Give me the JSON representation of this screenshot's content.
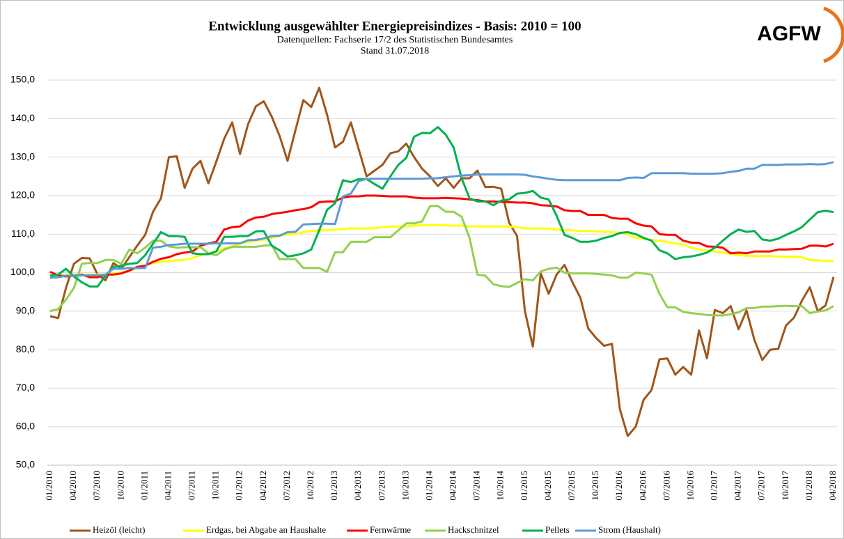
{
  "logo": "AGFW",
  "chart_data": {
    "type": "line",
    "title": "Entwicklung ausgewählter Energiepreisindizes - Basis: 2010 = 100",
    "subtitle": "Datenquellen:  Fachserie 17/2 des Statistischen Bundesamtes",
    "note": "Stand 31.07.2018",
    "categories": [
      "01/2010",
      null,
      null,
      "04/2010",
      null,
      null,
      "07/2010",
      null,
      null,
      "10/2010",
      null,
      null,
      "01/2011",
      null,
      null,
      "04/2011",
      null,
      null,
      "07/2011",
      null,
      null,
      "10/2011",
      null,
      null,
      "01/2012",
      null,
      null,
      "04/2012",
      null,
      null,
      "07/2012",
      null,
      null,
      "10/2012",
      null,
      null,
      "01/2013",
      null,
      null,
      "04/2013",
      null,
      null,
      "07/2013",
      null,
      null,
      "10/2013",
      null,
      null,
      "01/2014",
      null,
      null,
      "04/2014",
      null,
      null,
      "07/2014",
      null,
      null,
      "10/2014",
      null,
      null,
      "01/2015",
      null,
      null,
      "04/2015",
      null,
      null,
      "07/2015",
      null,
      null,
      "10/2015",
      null,
      null,
      "01/2016",
      null,
      null,
      "04/2016",
      null,
      null,
      "07/2016",
      null,
      null,
      "10/2016",
      null,
      null,
      "01/2017",
      null,
      null,
      "04/2017",
      null,
      null,
      "07/2017",
      null,
      null,
      "10/2017",
      null,
      null,
      "01/2018",
      null,
      null,
      "04/2018"
    ],
    "ylim": [
      50,
      150
    ],
    "yticks": [
      {
        "value": 50,
        "label": "50,0"
      },
      {
        "value": 60,
        "label": "60,0"
      },
      {
        "value": 70,
        "label": "70,0"
      },
      {
        "value": 80,
        "label": "80,0"
      },
      {
        "value": 90,
        "label": "90,0"
      },
      {
        "value": 100,
        "label": "100,0"
      },
      {
        "value": 110,
        "label": "110,0"
      },
      {
        "value": 120,
        "label": "120,0"
      },
      {
        "value": 130,
        "label": "130,0"
      },
      {
        "value": 140,
        "label": "140,0"
      },
      {
        "value": 150,
        "label": "150,0"
      }
    ],
    "grid": true,
    "legend": "bottom",
    "series": [
      {
        "name": "Heizöl (leicht)",
        "color": "#a0561a",
        "values": [
          88.7,
          88.2,
          96,
          102.3,
          103.8,
          103.7,
          99.5,
          98,
          102.5,
          101,
          104,
          107,
          109.8,
          115.8,
          119.3,
          130,
          130.2,
          122,
          127,
          129,
          123.2,
          128.8,
          134.8,
          139,
          130.8,
          138.5,
          143.2,
          144.5,
          140.5,
          135.5,
          129,
          137,
          144.8,
          143,
          148,
          141,
          132.5,
          134,
          139,
          132,
          125,
          126.5,
          128,
          131,
          131.5,
          133.5,
          130,
          127,
          125,
          122.5,
          124.5,
          122,
          124.5,
          124.5,
          126.5,
          122.2,
          122.3,
          121.8,
          113,
          109.5,
          90,
          80.8,
          99.8,
          94.5,
          99.5,
          102,
          97.5,
          93.5,
          85.5,
          83,
          81,
          81.5,
          64.5,
          57.6,
          60,
          67,
          69.5,
          77.5,
          77.7,
          73.5,
          75.5,
          73.5,
          85,
          77.8,
          90.3,
          89.5,
          91.3,
          85.3,
          90.2,
          82.5,
          77.3,
          80,
          80.2,
          86.3,
          88.3,
          92.7,
          96.2,
          90,
          91.5,
          98.9
        ]
      },
      {
        "name": "Erdgas, bei Abgabe an Haushalte",
        "color": "#ffff00",
        "values": [
          99.3,
          99.3,
          99.4,
          99.5,
          99.5,
          99.5,
          99.5,
          99.5,
          99.8,
          100,
          100.5,
          101.2,
          101.8,
          102.5,
          102.8,
          103,
          103.2,
          103.3,
          103.8,
          104.5,
          105,
          105.5,
          106.3,
          106.8,
          107.5,
          108,
          108.3,
          108.5,
          109,
          109.5,
          110,
          110,
          110.5,
          110.8,
          111,
          111,
          111.2,
          111.3,
          111.5,
          111.5,
          111.5,
          111.5,
          111.8,
          112,
          112,
          112,
          112.2,
          112.3,
          112.3,
          112.3,
          112.3,
          112.2,
          112.2,
          112,
          112,
          112,
          112,
          112,
          112,
          111.8,
          111.5,
          111.5,
          111.5,
          111.4,
          111.2,
          111,
          111,
          110.8,
          110.8,
          110.7,
          110.6,
          110.5,
          110.3,
          110,
          109,
          108.8,
          108.5,
          108.3,
          108,
          107.5,
          107.3,
          106.5,
          106,
          105.7,
          105.5,
          105.2,
          104.9,
          104.6,
          104.4,
          104.3,
          104.3,
          104.3,
          104.2,
          104.1,
          104.1,
          104,
          103.3,
          103.2,
          103,
          103
        ]
      },
      {
        "name": "Fernwärme",
        "color": "#ff0000",
        "values": [
          100.2,
          99.3,
          99,
          99.2,
          99.5,
          98.8,
          98.8,
          99.5,
          99.5,
          99.8,
          100.5,
          101.5,
          101.8,
          102.8,
          103.6,
          104,
          104.8,
          105.2,
          105.5,
          107,
          107.6,
          108,
          111.2,
          111.8,
          112,
          113.5,
          114.3,
          114.5,
          115.2,
          115.5,
          115.8,
          116.2,
          116.5,
          117,
          118.3,
          118.5,
          118.5,
          119.5,
          119.8,
          119.8,
          120,
          120,
          119.9,
          119.8,
          119.8,
          119.8,
          119.5,
          119.3,
          119.3,
          119.3,
          119.4,
          119.3,
          119.2,
          119,
          118.8,
          118.5,
          118.5,
          118.4,
          118.3,
          118.2,
          118.2,
          118,
          117.5,
          117.4,
          117.2,
          116.2,
          116,
          116,
          115,
          115,
          115,
          114.2,
          114,
          114,
          112.8,
          112.2,
          112,
          110,
          109.8,
          109.8,
          108.3,
          107.8,
          107.7,
          106.8,
          106.7,
          106.5,
          105,
          105.2,
          105,
          105.5,
          105.5,
          105.5,
          106,
          106,
          106.1,
          106.2,
          107,
          107,
          106.8,
          107.5
        ]
      },
      {
        "name": "Hackschnitzel",
        "color": "#92d050",
        "values": [
          90,
          90.5,
          93,
          96,
          102.3,
          102.5,
          102.5,
          103.3,
          103.3,
          102.3,
          106,
          105,
          106.5,
          108.3,
          108.3,
          106.8,
          106.5,
          106.6,
          106.6,
          106.6,
          105,
          104.5,
          106,
          106.7,
          106.7,
          106.7,
          106.7,
          107,
          107.2,
          103.5,
          103.5,
          103.5,
          101.2,
          101.2,
          101.2,
          100.2,
          105.3,
          105.3,
          108,
          108,
          108,
          109.2,
          109.2,
          109.2,
          111,
          112.8,
          112.8,
          113.3,
          117.3,
          117.3,
          115.8,
          115.8,
          114.5,
          109,
          99.5,
          99.2,
          97,
          96.5,
          96.3,
          97.3,
          98.3,
          98,
          100.3,
          101,
          101.3,
          100,
          99.8,
          99.8,
          99.8,
          99.7,
          99.5,
          99.3,
          98.7,
          98.7,
          100,
          99.8,
          99.5,
          94.5,
          91,
          91,
          89.8,
          89.5,
          89.3,
          89,
          88.9,
          88.9,
          89.2,
          89.7,
          90.8,
          90.8,
          91.2,
          91.2,
          91.3,
          91.4,
          91.3,
          91.3,
          89.5,
          89.9,
          90.2,
          91.3
        ]
      },
      {
        "name": "Pellets",
        "color": "#00b050",
        "values": [
          99.2,
          99.5,
          101,
          99,
          97.5,
          96.4,
          96.4,
          99.2,
          101.5,
          101.8,
          102.3,
          102.5,
          104.5,
          107.5,
          110.5,
          109.5,
          109.5,
          109.3,
          105,
          104.8,
          104.8,
          105.5,
          109.3,
          109.3,
          109.5,
          109.5,
          110.7,
          110.8,
          107,
          105.8,
          104.2,
          104.5,
          105,
          106,
          111,
          116.3,
          118,
          124,
          123.5,
          124.3,
          124.3,
          123,
          121.8,
          125,
          128,
          129.8,
          135.3,
          136.3,
          136.2,
          137.8,
          135.8,
          132.5,
          124.5,
          119.3,
          118.5,
          118.5,
          117.5,
          118.7,
          119,
          120.5,
          120.7,
          121.2,
          119.5,
          119,
          114.8,
          109.8,
          109,
          108,
          108,
          108.3,
          109,
          109.5,
          110.3,
          110.5,
          110,
          109,
          108.3,
          105.8,
          105,
          103.5,
          104,
          104.2,
          104.6,
          105.2,
          106.5,
          108.3,
          110,
          111.2,
          110.6,
          110.8,
          108.6,
          108.3,
          108.8,
          109.8,
          110.7,
          111.8,
          113.8,
          115.7,
          116.1,
          115.7
        ]
      },
      {
        "name": "Strom (Haushalt)",
        "color": "#5b9bd5",
        "values": [
          98.7,
          98.8,
          99.2,
          99.2,
          99.3,
          99.3,
          99.3,
          99.5,
          101,
          101,
          101.2,
          101.2,
          101.2,
          106.5,
          106.7,
          107.2,
          107.3,
          107.5,
          107.5,
          107.5,
          107.5,
          107.6,
          107.6,
          107.6,
          107.6,
          108.4,
          108.5,
          108.9,
          109.5,
          109.6,
          110.5,
          110.6,
          112.5,
          112.6,
          112.7,
          112.7,
          112.6,
          119.8,
          120.5,
          123.8,
          124.3,
          124.4,
          124.4,
          124.4,
          124.4,
          124.4,
          124.4,
          124.4,
          124.5,
          124.5,
          124.8,
          125,
          125.2,
          125.3,
          125.5,
          125.5,
          125.5,
          125.5,
          125.5,
          125.5,
          125.4,
          125,
          124.7,
          124.4,
          124.1,
          124,
          124,
          124,
          124,
          124,
          124,
          124,
          124,
          124.6,
          124.7,
          124.6,
          125.8,
          125.8,
          125.8,
          125.8,
          125.8,
          125.7,
          125.7,
          125.7,
          125.7,
          125.8,
          126.2,
          126.4,
          127,
          127,
          128,
          128,
          128,
          128.1,
          128.1,
          128.1,
          128.2,
          128.1,
          128.2,
          128.7
        ]
      }
    ]
  }
}
